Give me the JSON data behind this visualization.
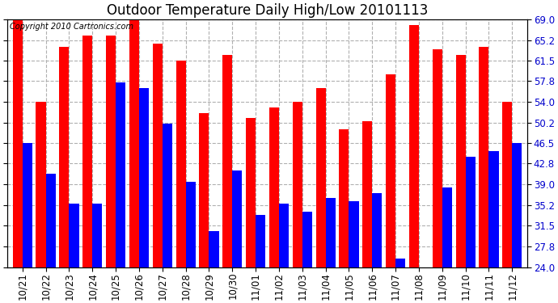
{
  "title": "Outdoor Temperature Daily High/Low 20101113",
  "copyright": "Copyright 2010 Cartronics.com",
  "categories": [
    "10/21",
    "10/22",
    "10/23",
    "10/24",
    "10/25",
    "10/26",
    "10/27",
    "10/28",
    "10/29",
    "10/30",
    "11/01",
    "11/02",
    "11/03",
    "11/04",
    "11/05",
    "11/06",
    "11/07",
    "11/08",
    "11/09",
    "11/10",
    "11/11",
    "11/12"
  ],
  "highs": [
    69.0,
    54.0,
    64.0,
    66.0,
    66.0,
    69.5,
    64.5,
    61.5,
    52.0,
    62.5,
    51.0,
    53.0,
    54.0,
    56.5,
    49.0,
    50.5,
    59.0,
    68.0,
    63.5,
    62.5,
    64.0,
    54.0
  ],
  "lows": [
    46.5,
    41.0,
    35.5,
    35.5,
    57.5,
    56.5,
    50.0,
    39.5,
    30.5,
    41.5,
    33.5,
    35.5,
    34.0,
    36.5,
    36.0,
    37.5,
    25.5,
    24.0,
    38.5,
    44.0,
    45.0,
    46.5
  ],
  "ymin": 24.0,
  "ylim": [
    24.0,
    69.0
  ],
  "yticks": [
    24.0,
    27.8,
    31.5,
    35.2,
    39.0,
    42.8,
    46.5,
    50.2,
    54.0,
    57.8,
    61.5,
    65.2,
    69.0
  ],
  "bar_width": 0.42,
  "high_color": "#ff0000",
  "low_color": "#0000ff",
  "bg_color": "#ffffff",
  "grid_color": "#b0b0b0",
  "title_fontsize": 12,
  "copyright_fontsize": 7,
  "tick_fontsize": 8.5,
  "right_tick_color": "#0000cc"
}
